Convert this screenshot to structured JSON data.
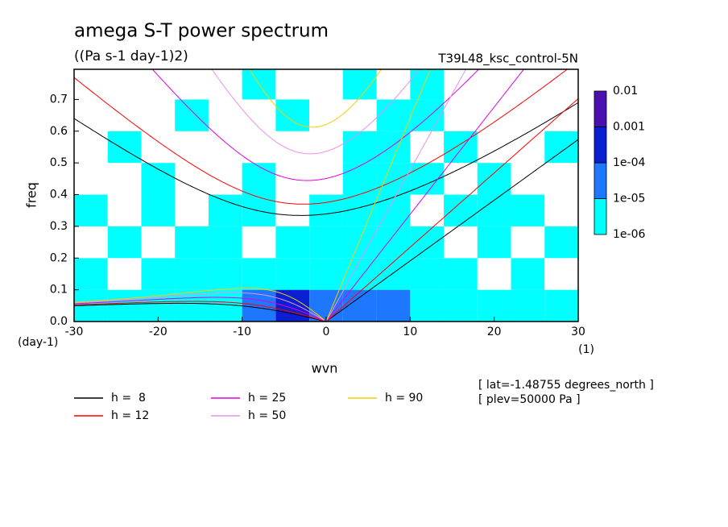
{
  "chart_data": {
    "type": "spectrum",
    "title": "amega S-T power spectrum",
    "subtitle": "((Pa s-1 day-1)2)",
    "run_name": "T39L48_ksc_control-5N",
    "x_label": "wvn",
    "y_label": "freq",
    "y_unit": "(day-1)",
    "x_unit": "(1)",
    "xlim": [
      -30,
      30
    ],
    "ylim": [
      0,
      0.795
    ],
    "xticks": [
      -30,
      -20,
      -10,
      0,
      10,
      20,
      30
    ],
    "yticks": [
      {
        "value": 0,
        "label": "0.0"
      },
      0.1,
      0.2,
      0.3,
      0.4,
      0.5,
      0.6,
      0.7
    ],
    "levels": [
      {
        "value": 1e-06,
        "label": "1e-06"
      },
      {
        "value": 1e-05,
        "label": "1e-05"
      },
      {
        "value": 0.0001,
        "label": "1e-04"
      },
      0.001,
      0.01
    ],
    "level_colors": [
      "#00ffff",
      "#1e78ff",
      "#0a1ed2",
      "#4a10b0"
    ],
    "field": {
      "x": [
        -28,
        -24,
        -20,
        -16,
        -12,
        -8,
        -4,
        0,
        4,
        8,
        12,
        16,
        20,
        24,
        28
      ],
      "y": [
        0.05,
        0.15,
        0.25,
        0.35,
        0.45,
        0.55,
        0.65,
        0.75
      ],
      "values": [
        [
          3e-06,
          3e-06,
          3e-06,
          3e-06,
          5e-06,
          3e-05,
          0.0002,
          5e-05,
          3e-05,
          3e-05,
          5e-06,
          5e-06,
          3e-06,
          3e-06,
          3e-06
        ],
        [
          3e-06,
          5e-07,
          3e-06,
          3e-06,
          3e-06,
          3e-06,
          5e-06,
          5e-06,
          3e-06,
          5e-06,
          3e-06,
          3e-06,
          5e-07,
          3e-06,
          5e-07
        ],
        [
          5e-07,
          3e-06,
          5e-07,
          3e-06,
          3e-06,
          5e-07,
          3e-06,
          3e-06,
          5e-06,
          3e-06,
          3e-06,
          5e-07,
          3e-06,
          5e-07,
          3e-06
        ],
        [
          3e-06,
          5e-07,
          3e-06,
          5e-07,
          3e-06,
          3e-06,
          5e-07,
          3e-06,
          3e-06,
          3e-06,
          5e-07,
          3e-06,
          3e-06,
          3e-06,
          5e-07
        ],
        [
          5e-07,
          5e-07,
          3e-06,
          5e-07,
          5e-07,
          3e-06,
          5e-07,
          5e-07,
          3e-06,
          3e-06,
          3e-06,
          5e-07,
          3e-06,
          5e-07,
          5e-07
        ],
        [
          5e-07,
          3e-06,
          5e-07,
          5e-07,
          5e-07,
          5e-07,
          5e-07,
          5e-07,
          3e-06,
          3e-06,
          5e-07,
          3e-06,
          5e-07,
          5e-07,
          3e-06
        ],
        [
          5e-07,
          5e-07,
          5e-07,
          3e-06,
          5e-07,
          5e-07,
          3e-06,
          5e-07,
          5e-07,
          3e-06,
          3e-06,
          5e-07,
          5e-07,
          5e-07,
          5e-07
        ],
        [
          5e-07,
          5e-07,
          5e-07,
          5e-07,
          5e-07,
          3e-06,
          5e-07,
          5e-07,
          3e-06,
          5e-07,
          3e-06,
          5e-07,
          5e-07,
          5e-07,
          5e-07
        ]
      ]
    },
    "series": [
      {
        "name": "h =  8",
        "color": "#000000",
        "equivalent_depth": 8
      },
      {
        "name": "h = 12",
        "color": "#ff0000",
        "equivalent_depth": 12
      },
      {
        "name": "h = 25",
        "color": "#e000e0",
        "equivalent_depth": 25
      },
      {
        "name": "h = 50",
        "color": "#e890e8",
        "equivalent_depth": 50
      },
      {
        "name": "h = 90",
        "color": "#f0d000",
        "equivalent_depth": 90
      }
    ],
    "notes": [
      "[ lat=-1.48755 degrees_north ]",
      "[ plev=50000 Pa ]"
    ]
  }
}
